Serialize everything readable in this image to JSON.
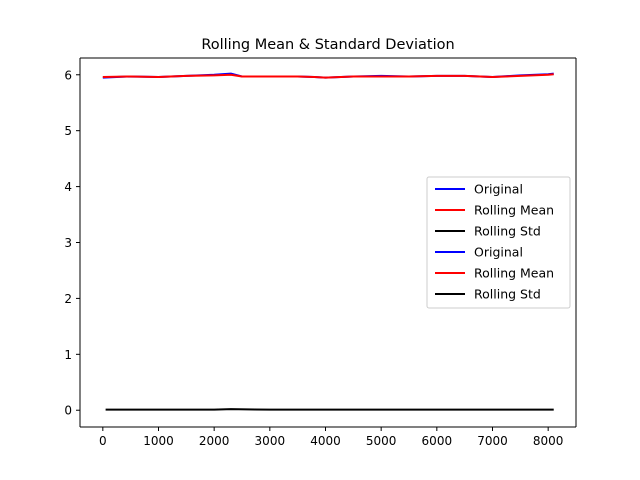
{
  "chart_data": {
    "type": "line",
    "title": "Rolling Mean & Standard Deviation",
    "xlabel": "",
    "ylabel": "",
    "xlim": [
      -410,
      8500
    ],
    "ylim": [
      -0.3,
      6.3
    ],
    "xticks": [
      0,
      1000,
      2000,
      3000,
      4000,
      5000,
      6000,
      7000,
      8000
    ],
    "yticks": [
      0,
      1,
      2,
      3,
      4,
      5,
      6
    ],
    "grid": false,
    "legend_position": "center-right",
    "series": [
      {
        "name": "Original",
        "color": "#0000ff",
        "x": [
          0,
          500,
          1000,
          1500,
          2000,
          2300,
          2500,
          3000,
          3500,
          3800,
          4000,
          4500,
          5000,
          5500,
          6000,
          6500,
          7000,
          7500,
          8000,
          8100
        ],
        "y": [
          5.95,
          5.97,
          5.96,
          5.98,
          6.0,
          6.02,
          5.97,
          5.97,
          5.97,
          5.96,
          5.95,
          5.97,
          5.98,
          5.97,
          5.98,
          5.98,
          5.96,
          5.99,
          6.01,
          6.02
        ]
      },
      {
        "name": "Rolling Mean",
        "color": "#ff0000",
        "x": [
          0,
          500,
          1000,
          1500,
          2000,
          2300,
          2500,
          3000,
          3500,
          3800,
          4000,
          4500,
          5000,
          5500,
          6000,
          6500,
          7000,
          7500,
          8000,
          8100
        ],
        "y": [
          5.96,
          5.97,
          5.96,
          5.98,
          5.99,
          6.0,
          5.97,
          5.97,
          5.97,
          5.96,
          5.95,
          5.97,
          5.97,
          5.97,
          5.98,
          5.98,
          5.96,
          5.98,
          6.0,
          6.01
        ]
      },
      {
        "name": "Rolling Std",
        "color": "#000000",
        "x": [
          50,
          1000,
          2000,
          2300,
          3000,
          4000,
          5000,
          6000,
          7000,
          8000,
          8100
        ],
        "y": [
          0.01,
          0.01,
          0.01,
          0.02,
          0.01,
          0.01,
          0.01,
          0.01,
          0.01,
          0.01,
          0.01
        ]
      },
      {
        "name": "Original",
        "color": "#0000ff",
        "x": [],
        "y": []
      },
      {
        "name": "Rolling Mean",
        "color": "#ff0000",
        "x": [],
        "y": []
      },
      {
        "name": "Rolling Std",
        "color": "#000000",
        "x": [],
        "y": []
      }
    ]
  }
}
